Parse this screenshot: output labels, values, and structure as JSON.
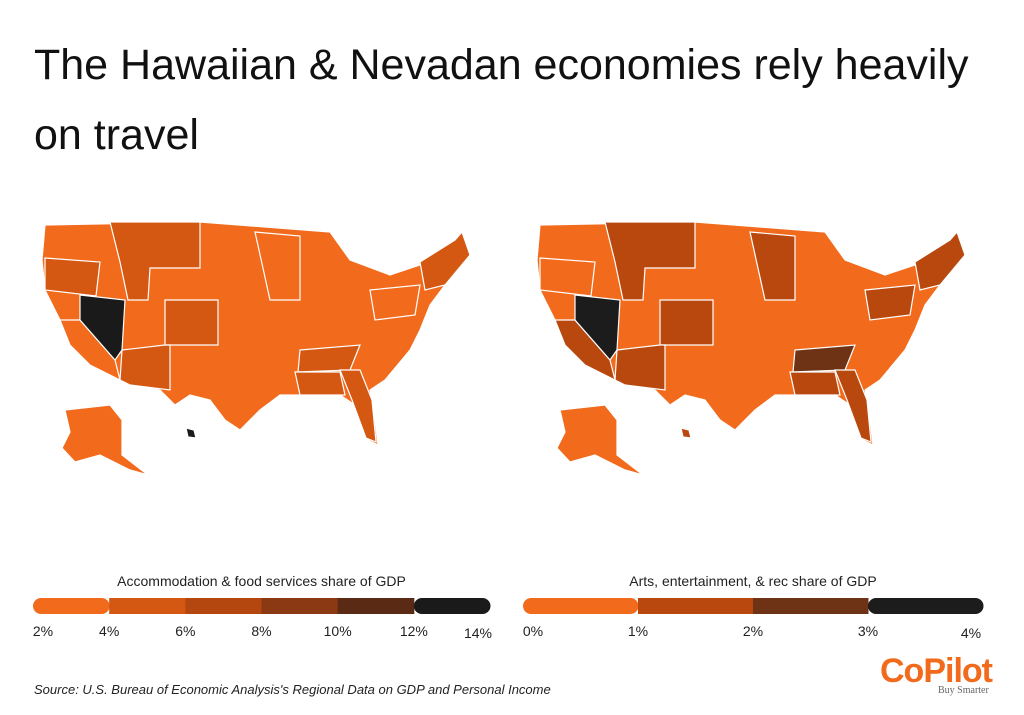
{
  "header": {
    "title": "The Hawaiian & Nevadan economies rely heavily on travel"
  },
  "maps": [
    {
      "legend_title": "Accommodation & food services share of GDP",
      "colors": [
        "#f26a1b",
        "#d45812",
        "#b4470f",
        "#8b3912",
        "#5a2a14",
        "#1a1a1a"
      ],
      "ticks": [
        {
          "value": 2,
          "label": "2%"
        },
        {
          "value": 4,
          "label": "4%"
        },
        {
          "value": 6,
          "label": "6%"
        },
        {
          "value": 8,
          "label": "8%"
        },
        {
          "value": 10,
          "label": "10%"
        },
        {
          "value": 12,
          "label": "12%"
        },
        {
          "value": 14,
          "label": "14%"
        }
      ]
    },
    {
      "legend_title": "Arts, entertainment, & rec share of GDP",
      "colors": [
        "#f26a1b",
        "#b9480f",
        "#6e3214",
        "#1c1c1c"
      ],
      "ticks": [
        {
          "value": 0,
          "label": "0%"
        },
        {
          "value": 1,
          "label": "1%"
        },
        {
          "value": 2,
          "label": "2%"
        },
        {
          "value": 3,
          "label": "3%"
        },
        {
          "value": 4,
          "label": "4%"
        }
      ]
    }
  ],
  "source": "Source:  U.S. Bureau of Economic Analysis's Regional Data on GDP and Personal Income",
  "logo": {
    "name": "CoPilot",
    "tagline": "Buy Smarter"
  }
}
